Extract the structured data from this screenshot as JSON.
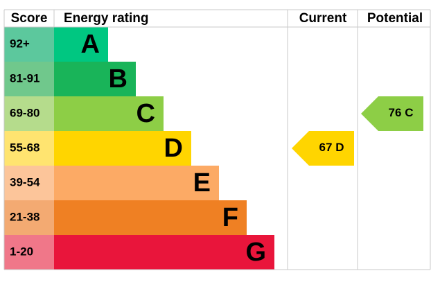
{
  "header": {
    "score": "Score",
    "rating": "Energy rating",
    "current": "Current",
    "potential": "Potential"
  },
  "bands": [
    {
      "range": "92+",
      "letter": "A",
      "color": "#00c781",
      "light": "#5cc89d"
    },
    {
      "range": "81-91",
      "letter": "B",
      "color": "#19b459",
      "light": "#70c88c"
    },
    {
      "range": "69-80",
      "letter": "C",
      "color": "#8dce46",
      "light": "#b5dc8c"
    },
    {
      "range": "55-68",
      "letter": "D",
      "color": "#ffd500",
      "light": "#ffe470"
    },
    {
      "range": "39-54",
      "letter": "E",
      "color": "#fcaa65",
      "light": "#fcc59a"
    },
    {
      "range": "21-38",
      "letter": "F",
      "color": "#ef8023",
      "light": "#f3aa72"
    },
    {
      "range": "1-20",
      "letter": "G",
      "color": "#e9153b",
      "light": "#f07789"
    }
  ],
  "current": {
    "value": 67,
    "letter": "D"
  },
  "potential": {
    "value": 76,
    "letter": "C"
  }
}
